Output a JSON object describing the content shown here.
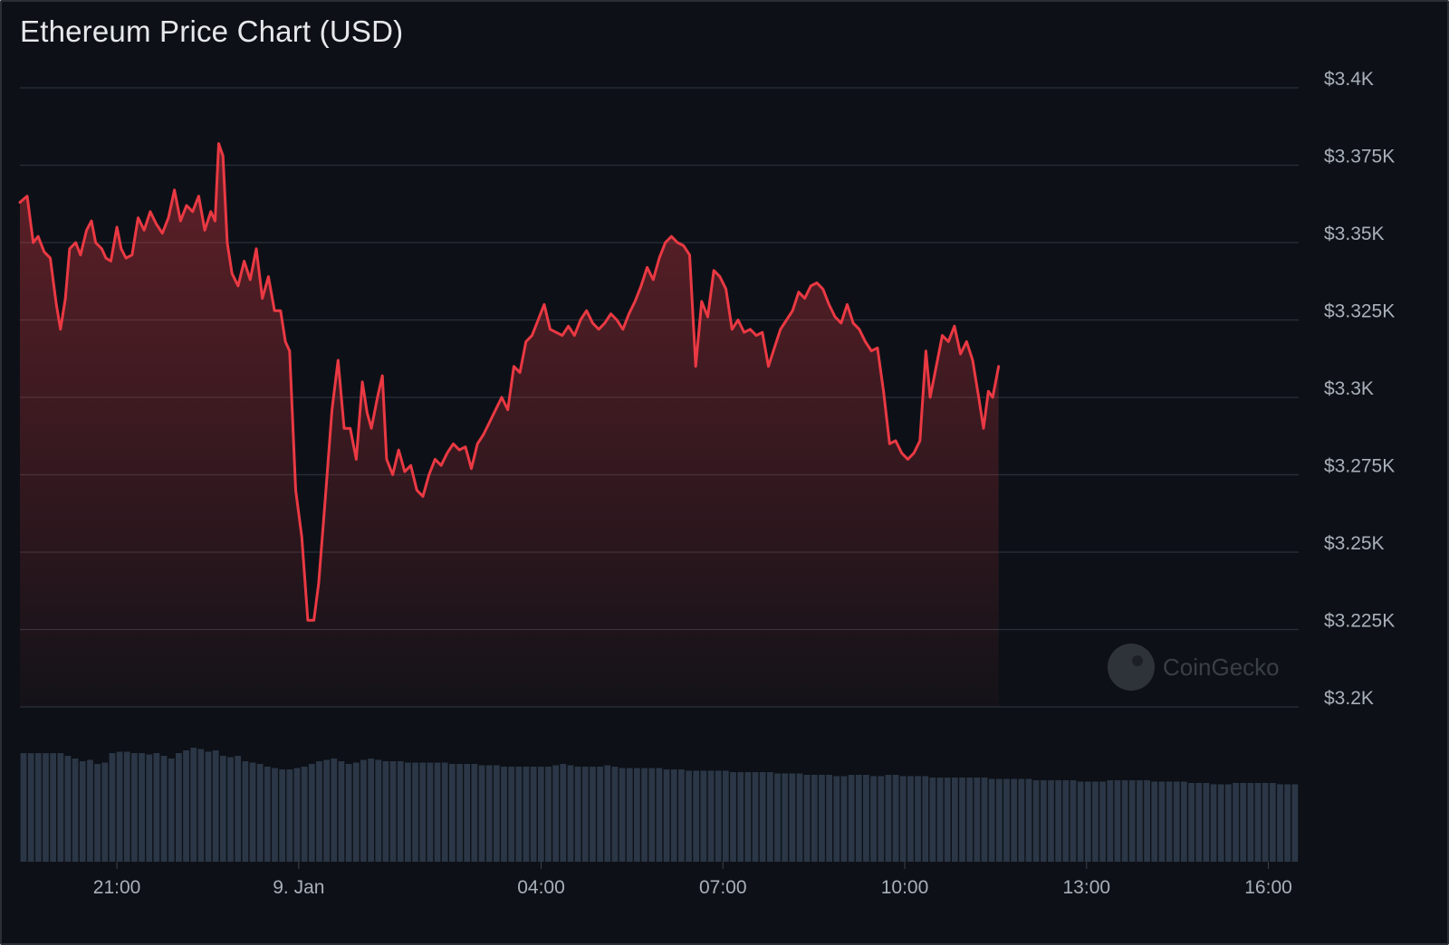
{
  "chart_data": {
    "type": "line",
    "title": "Ethereum Price Chart (USD)",
    "watermark": "CoinGecko",
    "xlabel": "",
    "ylabel": "",
    "ylim": [
      3200,
      3400
    ],
    "y_ticks": [
      3400,
      3375,
      3350,
      3325,
      3300,
      3275,
      3250,
      3225,
      3200
    ],
    "y_tick_labels": [
      "$3.4K",
      "$3.375K",
      "$3.35K",
      "$3.325K",
      "$3.3K",
      "$3.275K",
      "$3.25K",
      "$3.225K",
      "$3.2K"
    ],
    "x_range_hours": [
      -4.6,
      16.5
    ],
    "x_ticks": [
      {
        "label": "21:00",
        "hour": -3.0
      },
      {
        "label": "9. Jan",
        "hour": 0.0
      },
      {
        "label": "04:00",
        "hour": 4.0
      },
      {
        "label": "07:00",
        "hour": 7.0
      },
      {
        "label": "10:00",
        "hour": 10.0
      },
      {
        "label": "13:00",
        "hour": 13.0
      },
      {
        "label": "16:00",
        "hour": 16.0
      }
    ],
    "grid": true,
    "legend": "none",
    "colors": {
      "line": "#ea3943",
      "area_top": "#ea3943",
      "volume": "#2b3646",
      "background": "#0d1117",
      "grid": "#2a3038"
    },
    "series": [
      {
        "values": [
          [
            -4.6,
            3363
          ],
          [
            -4.48,
            3365
          ],
          [
            -4.38,
            3350
          ],
          [
            -4.3,
            3352
          ],
          [
            -4.2,
            3347
          ],
          [
            -4.1,
            3345
          ],
          [
            -4.0,
            3330
          ],
          [
            -3.93,
            3322
          ],
          [
            -3.85,
            3332
          ],
          [
            -3.78,
            3348
          ],
          [
            -3.68,
            3350
          ],
          [
            -3.6,
            3346
          ],
          [
            -3.5,
            3354
          ],
          [
            -3.42,
            3357
          ],
          [
            -3.35,
            3350
          ],
          [
            -3.25,
            3348
          ],
          [
            -3.18,
            3345
          ],
          [
            -3.1,
            3344
          ],
          [
            -3.0,
            3355
          ],
          [
            -2.93,
            3348
          ],
          [
            -2.85,
            3345
          ],
          [
            -2.75,
            3346
          ],
          [
            -2.65,
            3358
          ],
          [
            -2.55,
            3354
          ],
          [
            -2.45,
            3360
          ],
          [
            -2.35,
            3356
          ],
          [
            -2.25,
            3353
          ],
          [
            -2.15,
            3358
          ],
          [
            -2.05,
            3367
          ],
          [
            -1.95,
            3357
          ],
          [
            -1.85,
            3362
          ],
          [
            -1.75,
            3360
          ],
          [
            -1.65,
            3365
          ],
          [
            -1.55,
            3354
          ],
          [
            -1.45,
            3360
          ],
          [
            -1.38,
            3357
          ],
          [
            -1.32,
            3382
          ],
          [
            -1.25,
            3378
          ],
          [
            -1.18,
            3350
          ],
          [
            -1.1,
            3340
          ],
          [
            -1.0,
            3336
          ],
          [
            -0.9,
            3344
          ],
          [
            -0.8,
            3338
          ],
          [
            -0.7,
            3348
          ],
          [
            -0.6,
            3332
          ],
          [
            -0.5,
            3339
          ],
          [
            -0.4,
            3328
          ],
          [
            -0.3,
            3328
          ],
          [
            -0.22,
            3318
          ],
          [
            -0.15,
            3315
          ],
          [
            -0.05,
            3270
          ],
          [
            0.05,
            3255
          ],
          [
            0.15,
            3228
          ],
          [
            0.25,
            3228
          ],
          [
            0.33,
            3240
          ],
          [
            0.45,
            3270
          ],
          [
            0.55,
            3296
          ],
          [
            0.65,
            3312
          ],
          [
            0.75,
            3290
          ],
          [
            0.85,
            3290
          ],
          [
            0.95,
            3280
          ],
          [
            1.05,
            3305
          ],
          [
            1.13,
            3295
          ],
          [
            1.2,
            3290
          ],
          [
            1.3,
            3300
          ],
          [
            1.38,
            3307
          ],
          [
            1.45,
            3280
          ],
          [
            1.55,
            3275
          ],
          [
            1.65,
            3283
          ],
          [
            1.75,
            3276
          ],
          [
            1.85,
            3278
          ],
          [
            1.95,
            3270
          ],
          [
            2.05,
            3268
          ],
          [
            2.15,
            3275
          ],
          [
            2.25,
            3280
          ],
          [
            2.35,
            3278
          ],
          [
            2.45,
            3282
          ],
          [
            2.55,
            3285
          ],
          [
            2.65,
            3283
          ],
          [
            2.75,
            3284
          ],
          [
            2.85,
            3277
          ],
          [
            2.95,
            3285
          ],
          [
            3.05,
            3288
          ],
          [
            3.15,
            3292
          ],
          [
            3.25,
            3296
          ],
          [
            3.35,
            3300
          ],
          [
            3.45,
            3296
          ],
          [
            3.55,
            3310
          ],
          [
            3.65,
            3308
          ],
          [
            3.75,
            3318
          ],
          [
            3.85,
            3320
          ],
          [
            3.95,
            3325
          ],
          [
            4.05,
            3330
          ],
          [
            4.15,
            3322
          ],
          [
            4.25,
            3321
          ],
          [
            4.35,
            3320
          ],
          [
            4.45,
            3323
          ],
          [
            4.55,
            3320
          ],
          [
            4.65,
            3325
          ],
          [
            4.75,
            3328
          ],
          [
            4.85,
            3324
          ],
          [
            4.95,
            3322
          ],
          [
            5.05,
            3324
          ],
          [
            5.15,
            3327
          ],
          [
            5.25,
            3325
          ],
          [
            5.35,
            3322
          ],
          [
            5.45,
            3327
          ],
          [
            5.55,
            3331
          ],
          [
            5.65,
            3336
          ],
          [
            5.75,
            3342
          ],
          [
            5.85,
            3338
          ],
          [
            5.95,
            3345
          ],
          [
            6.05,
            3350
          ],
          [
            6.15,
            3352
          ],
          [
            6.25,
            3350
          ],
          [
            6.35,
            3349
          ],
          [
            6.45,
            3346
          ],
          [
            6.55,
            3310
          ],
          [
            6.65,
            3331
          ],
          [
            6.75,
            3326
          ],
          [
            6.85,
            3341
          ],
          [
            6.95,
            3339
          ],
          [
            7.05,
            3335
          ],
          [
            7.15,
            3322
          ],
          [
            7.25,
            3325
          ],
          [
            7.35,
            3321
          ],
          [
            7.45,
            3322
          ],
          [
            7.55,
            3320
          ],
          [
            7.65,
            3321
          ],
          [
            7.75,
            3310
          ],
          [
            7.85,
            3316
          ],
          [
            7.95,
            3322
          ],
          [
            8.05,
            3325
          ],
          [
            8.15,
            3328
          ],
          [
            8.25,
            3334
          ],
          [
            8.35,
            3332
          ],
          [
            8.45,
            3336
          ],
          [
            8.55,
            3337
          ],
          [
            8.65,
            3335
          ],
          [
            8.75,
            3330
          ],
          [
            8.85,
            3326
          ],
          [
            8.95,
            3324
          ],
          [
            9.05,
            3330
          ],
          [
            9.15,
            3324
          ],
          [
            9.25,
            3322
          ],
          [
            9.35,
            3318
          ],
          [
            9.45,
            3315
          ],
          [
            9.55,
            3316
          ],
          [
            9.65,
            3302
          ],
          [
            9.75,
            3285
          ],
          [
            9.85,
            3286
          ],
          [
            9.95,
            3282
          ],
          [
            10.05,
            3280
          ],
          [
            10.15,
            3282
          ],
          [
            10.25,
            3286
          ],
          [
            10.35,
            3315
          ],
          [
            10.42,
            3300
          ],
          [
            10.52,
            3310
          ],
          [
            10.62,
            3320
          ],
          [
            10.72,
            3318
          ],
          [
            10.82,
            3323
          ],
          [
            10.92,
            3314
          ],
          [
            11.02,
            3318
          ],
          [
            11.12,
            3312
          ],
          [
            11.22,
            3300
          ],
          [
            11.3,
            3290
          ],
          [
            11.38,
            3302
          ],
          [
            11.45,
            3300
          ],
          [
            11.55,
            3310
          ]
        ]
      }
    ],
    "volume": {
      "note": "relative volume bars, 0..1",
      "values": [
        0.8,
        0.8,
        0.8,
        0.8,
        0.8,
        0.8,
        0.78,
        0.76,
        0.74,
        0.75,
        0.72,
        0.73,
        0.8,
        0.81,
        0.81,
        0.8,
        0.8,
        0.79,
        0.8,
        0.78,
        0.76,
        0.8,
        0.82,
        0.84,
        0.83,
        0.81,
        0.82,
        0.78,
        0.77,
        0.78,
        0.74,
        0.73,
        0.72,
        0.7,
        0.69,
        0.68,
        0.68,
        0.69,
        0.7,
        0.72,
        0.74,
        0.75,
        0.76,
        0.74,
        0.72,
        0.73,
        0.75,
        0.76,
        0.75,
        0.74,
        0.74,
        0.74,
        0.73,
        0.73,
        0.73,
        0.73,
        0.73,
        0.73,
        0.72,
        0.72,
        0.72,
        0.72,
        0.71,
        0.71,
        0.71,
        0.7,
        0.7,
        0.7,
        0.7,
        0.7,
        0.7,
        0.7,
        0.71,
        0.72,
        0.71,
        0.7,
        0.7,
        0.7,
        0.7,
        0.71,
        0.7,
        0.69,
        0.69,
        0.69,
        0.69,
        0.69,
        0.69,
        0.68,
        0.68,
        0.68,
        0.67,
        0.67,
        0.67,
        0.67,
        0.67,
        0.67,
        0.66,
        0.66,
        0.66,
        0.66,
        0.66,
        0.66,
        0.65,
        0.65,
        0.65,
        0.65,
        0.64,
        0.64,
        0.64,
        0.64,
        0.63,
        0.63,
        0.64,
        0.64,
        0.64,
        0.63,
        0.63,
        0.64,
        0.64,
        0.63,
        0.63,
        0.63,
        0.63,
        0.62,
        0.62,
        0.62,
        0.62,
        0.62,
        0.62,
        0.62,
        0.62,
        0.61,
        0.61,
        0.61,
        0.61,
        0.61,
        0.61,
        0.6,
        0.6,
        0.6,
        0.6,
        0.6,
        0.6,
        0.59,
        0.59,
        0.59,
        0.59,
        0.6,
        0.6,
        0.6,
        0.6,
        0.6,
        0.6,
        0.59,
        0.59,
        0.59,
        0.59,
        0.59,
        0.58,
        0.58,
        0.58,
        0.57,
        0.57,
        0.57,
        0.58,
        0.58,
        0.58,
        0.58,
        0.58,
        0.58,
        0.57,
        0.57,
        0.57
      ]
    }
  }
}
